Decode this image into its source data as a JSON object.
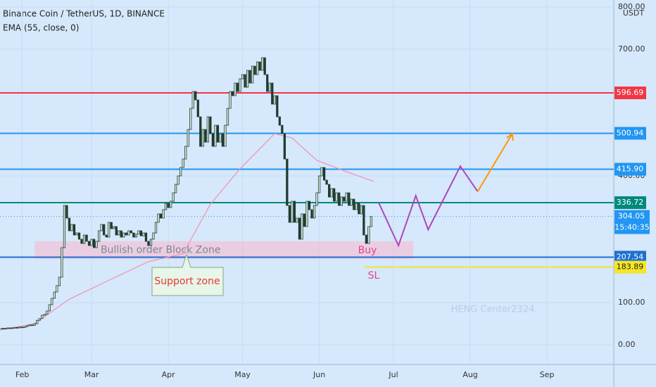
{
  "chart_data": {
    "type": "candlestick",
    "title": "Binance Coin / TetherUS, 1D, BINANCE",
    "indicator": "EMA (55, close, 0)",
    "currency": "USDT",
    "close": [
      38,
      39,
      38,
      40,
      39,
      40,
      41,
      40,
      42,
      41,
      43,
      45,
      47,
      46,
      50,
      58,
      62,
      70,
      72,
      80,
      95,
      110,
      125,
      140,
      160,
      230,
      330,
      300,
      270,
      285,
      260,
      265,
      250,
      240,
      260,
      245,
      235,
      250,
      230,
      245,
      270,
      285,
      260,
      255,
      290,
      275,
      280,
      260,
      270,
      255,
      265,
      260,
      270,
      265,
      255,
      262,
      270,
      258,
      265,
      245,
      235,
      250,
      265,
      290,
      310,
      300,
      320,
      335,
      325,
      340,
      360,
      380,
      400,
      420,
      440,
      470,
      510,
      560,
      600,
      580,
      540,
      470,
      510,
      480,
      540,
      500,
      470,
      520,
      480,
      500,
      470,
      520,
      560,
      600,
      590,
      620,
      600,
      630,
      640,
      610,
      650,
      620,
      660,
      640,
      670,
      650,
      680,
      640,
      600,
      620,
      570,
      590,
      540,
      520,
      500,
      440,
      330,
      290,
      340,
      290,
      300,
      250,
      310,
      280,
      340,
      320,
      300,
      330,
      360,
      400,
      420,
      390,
      380,
      350,
      370,
      340,
      360,
      330,
      350,
      340,
      360,
      330,
      345,
      320,
      335,
      310,
      330,
      260,
      240,
      280,
      304.05
    ],
    "up_color": "#dff0e6",
    "down_color": "#1f3b30",
    "ema": {
      "name": "EMA (55, close, 0)",
      "color": "#f48fb1",
      "x": [
        0,
        14,
        28,
        43,
        60,
        74,
        85,
        97,
        111,
        118,
        128,
        140,
        151
      ],
      "values": [
        35,
        50,
        108,
        150,
        197,
        216,
        333,
        417,
        500,
        490,
        437,
        410,
        387
      ]
    },
    "levels": [
      {
        "value": 596.69,
        "color": "#f23645"
      },
      {
        "value": 500.94,
        "color": "#2196f3"
      },
      {
        "value": 415.9,
        "label": "415.90",
        "color": "#2196f3"
      },
      {
        "value": 336.72,
        "color": "#00897b"
      },
      {
        "value": 207.54,
        "color": "#1e6fd0"
      },
      {
        "value": 183.89,
        "color": "#f5e625"
      }
    ],
    "last_price": {
      "value": 304.05,
      "countdown": "15:40:35",
      "color": "#2196f3"
    },
    "zone": {
      "label": "Bullish order Block Zone",
      "x": [
        14,
        167
      ],
      "values": [
        203,
        245
      ],
      "color": "#f8bbd0"
    },
    "support_label": "Support zone",
    "buy_label": "Buy",
    "sl_label": "SL",
    "watermark": "HENG Center2324",
    "projection": {
      "color": "#ab47bc",
      "x": [
        153,
        161,
        168,
        173,
        186,
        193
      ],
      "values": [
        337,
        235,
        353,
        273,
        423,
        363
      ]
    },
    "target": {
      "color": "#ff9800",
      "x": [
        193,
        207
      ],
      "values": [
        363,
        500
      ]
    },
    "xlim": [
      0,
      248
    ],
    "xticks": [
      {
        "value": 9,
        "label": "Feb"
      },
      {
        "value": 37,
        "label": "Mar"
      },
      {
        "value": 68,
        "label": "Apr"
      },
      {
        "value": 98,
        "label": "May"
      },
      {
        "value": 129,
        "label": "Jun"
      },
      {
        "value": 159,
        "label": "Jul"
      },
      {
        "value": 190,
        "label": "Aug"
      },
      {
        "value": 221,
        "label": "Sep"
      }
    ],
    "ylim": [
      -46.7,
      816.7
    ],
    "yticks": [
      {
        "value": 0,
        "label": "0.00"
      },
      {
        "value": 100,
        "label": "100.00"
      },
      {
        "value": 400,
        "label": "400.00"
      },
      {
        "value": 700,
        "label": "700.00"
      },
      {
        "value": 800,
        "label": "800.00"
      }
    ],
    "grid": true
  }
}
